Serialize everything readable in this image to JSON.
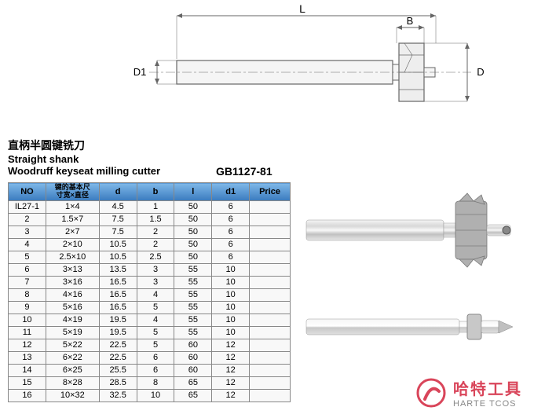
{
  "diagram": {
    "labels": {
      "L": "L",
      "B": "B",
      "D1": "D1",
      "D": "D"
    },
    "stroke": "#666666",
    "fill_light": "#eeeeee",
    "cutter_fill": "#cccccc"
  },
  "title": {
    "cn": "直柄半圆键铣刀",
    "en1": "Straight shank",
    "en2": "Woodruff keyseat milling cutter",
    "std": "GB1127-81"
  },
  "table": {
    "headers": {
      "no": "NO",
      "key_cn1": "键的基本尺",
      "key_cn2": "寸宽×直径",
      "d": "d",
      "b": "b",
      "l": "l",
      "d1": "d1",
      "price": "Price"
    },
    "row_prefix": "IL27-",
    "rows": [
      {
        "no": "1",
        "key": "1×4",
        "d": "4.5",
        "b": "1",
        "l": "50",
        "d1": "6",
        "price": ""
      },
      {
        "no": "2",
        "key": "1.5×7",
        "d": "7.5",
        "b": "1.5",
        "l": "50",
        "d1": "6",
        "price": ""
      },
      {
        "no": "3",
        "key": "2×7",
        "d": "7.5",
        "b": "2",
        "l": "50",
        "d1": "6",
        "price": ""
      },
      {
        "no": "4",
        "key": "2×10",
        "d": "10.5",
        "b": "2",
        "l": "50",
        "d1": "6",
        "price": ""
      },
      {
        "no": "5",
        "key": "2.5×10",
        "d": "10.5",
        "b": "2.5",
        "l": "50",
        "d1": "6",
        "price": ""
      },
      {
        "no": "6",
        "key": "3×13",
        "d": "13.5",
        "b": "3",
        "l": "55",
        "d1": "10",
        "price": ""
      },
      {
        "no": "7",
        "key": "3×16",
        "d": "16.5",
        "b": "3",
        "l": "55",
        "d1": "10",
        "price": ""
      },
      {
        "no": "8",
        "key": "4×16",
        "d": "16.5",
        "b": "4",
        "l": "55",
        "d1": "10",
        "price": ""
      },
      {
        "no": "9",
        "key": "5×16",
        "d": "16.5",
        "b": "5",
        "l": "55",
        "d1": "10",
        "price": ""
      },
      {
        "no": "10",
        "key": "4×19",
        "d": "19.5",
        "b": "4",
        "l": "55",
        "d1": "10",
        "price": ""
      },
      {
        "no": "11",
        "key": "5×19",
        "d": "19.5",
        "b": "5",
        "l": "55",
        "d1": "10",
        "price": ""
      },
      {
        "no": "12",
        "key": "5×22",
        "d": "22.5",
        "b": "5",
        "l": "60",
        "d1": "12",
        "price": ""
      },
      {
        "no": "13",
        "key": "6×22",
        "d": "22.5",
        "b": "6",
        "l": "60",
        "d1": "12",
        "price": ""
      },
      {
        "no": "14",
        "key": "6×25",
        "d": "25.5",
        "b": "6",
        "l": "60",
        "d1": "12",
        "price": ""
      },
      {
        "no": "15",
        "key": "8×28",
        "d": "28.5",
        "b": "8",
        "l": "65",
        "d1": "12",
        "price": ""
      },
      {
        "no": "16",
        "key": "10×32",
        "d": "32.5",
        "b": "10",
        "l": "65",
        "d1": "12",
        "price": ""
      }
    ]
  },
  "logo": {
    "brand_cn": "哈特工具",
    "brand_en": "HARTE TCOS",
    "icon_color": "#d9455a",
    "text_color": "#d9455a",
    "sub_color": "#888888"
  },
  "product_render": {
    "shank_color": "#c8c8c8",
    "shank_highlight": "#f0f0f0",
    "cutter_color": "#a0a0a0"
  }
}
